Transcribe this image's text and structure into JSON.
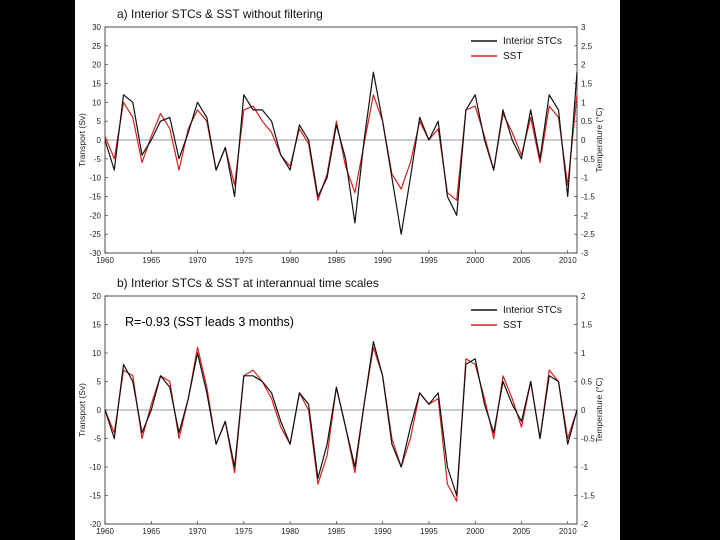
{
  "colors": {
    "background": "#000000",
    "canvas": "#ffffff",
    "sst": "#d42020",
    "stc": "#111111"
  },
  "chart_data": [
    {
      "type": "line",
      "title": "a) Interior STCs & SST without filtering",
      "ylabel": "Transport (Sv)",
      "y2label": "Temperature (°C)",
      "xlim": [
        1960,
        2011
      ],
      "ylim": [
        -30,
        30
      ],
      "y2lim": [
        -3,
        3
      ],
      "xticks": [
        "1960",
        "1965",
        "1970",
        "1975",
        "1980",
        "1985",
        "1990",
        "1995",
        "2000",
        "2005",
        "2010"
      ],
      "yticks": [
        "30",
        "25",
        "20",
        "15",
        "10",
        "5",
        "0",
        "-5",
        "-10",
        "-15",
        "-20",
        "-25",
        "-30"
      ],
      "y2ticks": [
        "3",
        "2.5",
        "2",
        "1.5",
        "1",
        "0.5",
        "0",
        "-0.5",
        "-1",
        "-1.5",
        "-2",
        "-2.5",
        "-3"
      ],
      "legend": "top-right",
      "zero_line": true,
      "x": [
        1960,
        1961,
        1962,
        1963,
        1964,
        1965,
        1966,
        1967,
        1968,
        1969,
        1970,
        1971,
        1972,
        1973,
        1974,
        1975,
        1976,
        1977,
        1978,
        1979,
        1980,
        1981,
        1982,
        1983,
        1984,
        1985,
        1986,
        1987,
        1988,
        1989,
        1990,
        1991,
        1992,
        1993,
        1994,
        1995,
        1996,
        1997,
        1998,
        1999,
        2000,
        2001,
        2002,
        2003,
        2004,
        2005,
        2006,
        2007,
        2008,
        2009,
        2010,
        2011
      ],
      "series": [
        {
          "name": "Interior STCs",
          "axis": "left",
          "values": [
            0,
            -8,
            12,
            10,
            -4,
            0,
            5,
            6,
            -5,
            2,
            10,
            6,
            -8,
            -2,
            -15,
            12,
            8,
            8,
            5,
            -4,
            -8,
            4,
            0,
            -15,
            -10,
            4,
            -5,
            -22,
            0,
            18,
            5,
            -10,
            -25,
            -10,
            6,
            0,
            5,
            -15,
            -20,
            8,
            12,
            0,
            -8,
            8,
            0,
            -5,
            8,
            -5,
            12,
            8,
            -15,
            18
          ]
        },
        {
          "name": "SST",
          "axis": "right",
          "values": [
            0.1,
            -0.5,
            1.0,
            0.6,
            -0.6,
            0.1,
            0.7,
            0.3,
            -0.8,
            0.3,
            0.8,
            0.5,
            -0.8,
            -0.2,
            -1.2,
            0.8,
            0.9,
            0.5,
            0.2,
            -0.4,
            -0.7,
            0.3,
            -0.1,
            -1.6,
            -0.9,
            0.5,
            -0.7,
            -1.4,
            -0.1,
            1.2,
            0.5,
            -0.9,
            -1.3,
            -0.6,
            0.5,
            0.0,
            0.3,
            -1.4,
            -1.6,
            0.8,
            0.9,
            0.1,
            -0.8,
            0.7,
            0.2,
            -0.4,
            0.6,
            -0.6,
            0.9,
            0.6,
            -1.2,
            1.2
          ]
        }
      ]
    },
    {
      "type": "line",
      "title": "b) Interior STCs & SST at interannual time scales",
      "ylabel": "Transport (Sv)",
      "y2label": "Temperature (°C)",
      "annotation": "R=-0.93 (SST leads 3 months)",
      "xlim": [
        1960,
        2011
      ],
      "ylim": [
        -20,
        20
      ],
      "y2lim": [
        -2,
        2
      ],
      "xticks": [
        "1960",
        "1965",
        "1970",
        "1975",
        "1980",
        "1985",
        "1990",
        "1995",
        "2000",
        "2005",
        "2010"
      ],
      "yticks": [
        "20",
        "15",
        "10",
        "5",
        "0",
        "-5",
        "-10",
        "-15",
        "-20"
      ],
      "y2ticks": [
        "2",
        "1.5",
        "1",
        "0.5",
        "0",
        "-0.5",
        "-1",
        "-1.5",
        "-2"
      ],
      "legend": "top-right",
      "zero_line": true,
      "x": [
        1960,
        1961,
        1962,
        1963,
        1964,
        1965,
        1966,
        1967,
        1968,
        1969,
        1970,
        1971,
        1972,
        1973,
        1974,
        1975,
        1976,
        1977,
        1978,
        1979,
        1980,
        1981,
        1982,
        1983,
        1984,
        1985,
        1986,
        1987,
        1988,
        1989,
        1990,
        1991,
        1992,
        1993,
        1994,
        1995,
        1996,
        1997,
        1998,
        1999,
        2000,
        2001,
        2002,
        2003,
        2004,
        2005,
        2006,
        2007,
        2008,
        2009,
        2010,
        2011
      ],
      "series": [
        {
          "name": "Interior STCs",
          "axis": "left",
          "values": [
            0,
            -5,
            8,
            5,
            -4,
            0,
            6,
            4,
            -4,
            2,
            10,
            3,
            -6,
            -2,
            -10,
            6,
            6,
            5,
            3,
            -2,
            -6,
            3,
            1,
            -12,
            -6,
            4,
            -3,
            -10,
            1,
            12,
            6,
            -6,
            -10,
            -3,
            3,
            1,
            3,
            -10,
            -15,
            8,
            9,
            1,
            -4,
            5,
            1,
            -2,
            5,
            -5,
            6,
            5,
            -6,
            0
          ]
        },
        {
          "name": "SST",
          "axis": "right",
          "values": [
            0,
            -0.4,
            0.7,
            0.6,
            -0.5,
            0.1,
            0.6,
            0.5,
            -0.5,
            0.2,
            1.1,
            0.4,
            -0.6,
            -0.2,
            -1.1,
            0.6,
            0.7,
            0.5,
            0.2,
            -0.3,
            -0.6,
            0.3,
            0.0,
            -1.3,
            -0.8,
            0.4,
            -0.3,
            -1.1,
            0.1,
            1.1,
            0.6,
            -0.5,
            -1.0,
            -0.5,
            0.3,
            0.1,
            0.2,
            -1.3,
            -1.6,
            0.9,
            0.8,
            0.2,
            -0.5,
            0.6,
            0.2,
            -0.3,
            0.5,
            -0.5,
            0.7,
            0.5,
            -0.5,
            0.0
          ]
        }
      ]
    }
  ]
}
